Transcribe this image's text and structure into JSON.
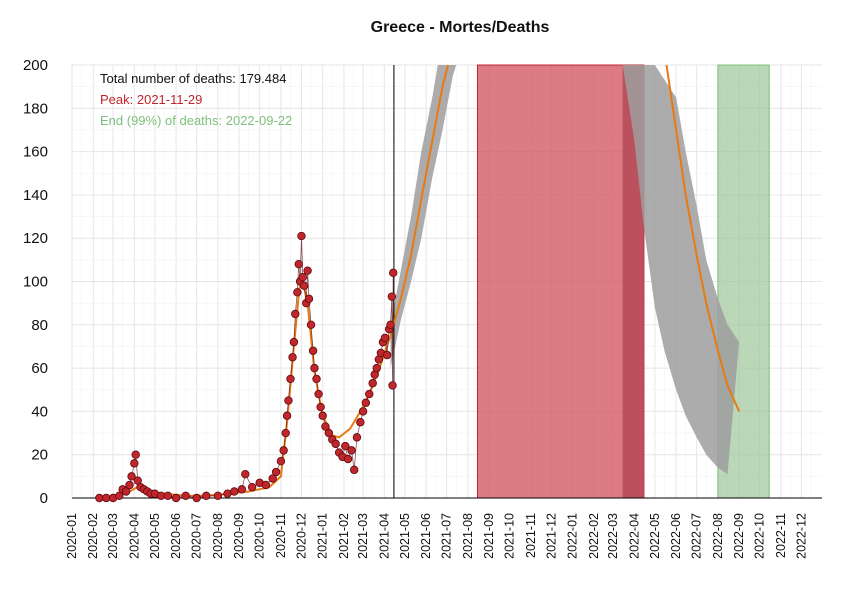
{
  "chart_data": {
    "type": "line",
    "title": "Greece - Mortes/Deaths",
    "annotations": {
      "total": "Total number of deaths: 179.484",
      "peak": "Peak: 2021-11-29",
      "end": "End (99%) of deaths: 2022-09-22"
    },
    "colors": {
      "points_fill": "#c0262c",
      "points_stroke": "#5a0a0e",
      "fit_line": "#e87a12",
      "band": "#9e9e9e",
      "peak_window": "#d45a66",
      "peak_window_overlap": "#b54a56",
      "end_window": "#9cc69a",
      "annotation_total": "#111111",
      "annotation_peak": "#c0262c",
      "annotation_end": "#7fbf7b"
    },
    "x_axis": {
      "labels": [
        "2020-01",
        "2020-02",
        "2020-03",
        "2020-04",
        "2020-05",
        "2020-06",
        "2020-07",
        "2020-08",
        "2020-09",
        "2020-10",
        "2020-11",
        "2020-12",
        "2021-01",
        "2021-02",
        "2021-03",
        "2021-04",
        "2021-05",
        "2021-06",
        "2021-07",
        "2021-08",
        "2021-09",
        "2021-10",
        "2021-11",
        "2021-12",
        "2022-01",
        "2022-02",
        "2022-03",
        "2022-04",
        "2022-05",
        "2022-06",
        "2022-07",
        "2022-08",
        "2022-09",
        "2022-10",
        "2022-11",
        "2022-12"
      ]
    },
    "y_axis": {
      "ylim": [
        0,
        200
      ],
      "ticks": [
        0,
        20,
        40,
        60,
        80,
        100,
        120,
        140,
        160,
        180,
        200
      ]
    },
    "grid": true,
    "current_date": "2021-04-15",
    "peak_window": [
      "2021-08-15",
      "2022-04-15"
    ],
    "peak_window_overlap": [
      "2022-03-15",
      "2022-04-15"
    ],
    "end_window": [
      "2022-08-01",
      "2022-10-15"
    ],
    "observed_points": [
      [
        "2020-02-10",
        0
      ],
      [
        "2020-02-20",
        0
      ],
      [
        "2020-03-01",
        0
      ],
      [
        "2020-03-10",
        1
      ],
      [
        "2020-03-15",
        4
      ],
      [
        "2020-03-20",
        3
      ],
      [
        "2020-03-25",
        6
      ],
      [
        "2020-03-28",
        10
      ],
      [
        "2020-04-01",
        16
      ],
      [
        "2020-04-03",
        20
      ],
      [
        "2020-04-06",
        8
      ],
      [
        "2020-04-10",
        5
      ],
      [
        "2020-04-15",
        4
      ],
      [
        "2020-04-20",
        3
      ],
      [
        "2020-04-25",
        2
      ],
      [
        "2020-05-01",
        2
      ],
      [
        "2020-05-10",
        1
      ],
      [
        "2020-05-20",
        1
      ],
      [
        "2020-06-01",
        0
      ],
      [
        "2020-06-15",
        1
      ],
      [
        "2020-07-01",
        0
      ],
      [
        "2020-07-15",
        1
      ],
      [
        "2020-08-01",
        1
      ],
      [
        "2020-08-15",
        2
      ],
      [
        "2020-08-25",
        3
      ],
      [
        "2020-09-05",
        4
      ],
      [
        "2020-09-10",
        11
      ],
      [
        "2020-09-20",
        5
      ],
      [
        "2020-10-01",
        7
      ],
      [
        "2020-10-10",
        6
      ],
      [
        "2020-10-20",
        9
      ],
      [
        "2020-10-25",
        12
      ],
      [
        "2020-11-01",
        17
      ],
      [
        "2020-11-05",
        22
      ],
      [
        "2020-11-08",
        30
      ],
      [
        "2020-11-10",
        38
      ],
      [
        "2020-11-12",
        45
      ],
      [
        "2020-11-15",
        55
      ],
      [
        "2020-11-18",
        65
      ],
      [
        "2020-11-20",
        72
      ],
      [
        "2020-11-22",
        85
      ],
      [
        "2020-11-25",
        95
      ],
      [
        "2020-11-27",
        108
      ],
      [
        "2020-11-29",
        100
      ],
      [
        "2020-12-01",
        121
      ],
      [
        "2020-12-03",
        102
      ],
      [
        "2020-12-05",
        98
      ],
      [
        "2020-12-08",
        90
      ],
      [
        "2020-12-10",
        105
      ],
      [
        "2020-12-12",
        92
      ],
      [
        "2020-12-15",
        80
      ],
      [
        "2020-12-18",
        68
      ],
      [
        "2020-12-20",
        60
      ],
      [
        "2020-12-23",
        55
      ],
      [
        "2020-12-26",
        48
      ],
      [
        "2020-12-29",
        42
      ],
      [
        "2021-01-01",
        38
      ],
      [
        "2021-01-05",
        33
      ],
      [
        "2021-01-10",
        30
      ],
      [
        "2021-01-15",
        27
      ],
      [
        "2021-01-20",
        25
      ],
      [
        "2021-01-25",
        21
      ],
      [
        "2021-01-30",
        19
      ],
      [
        "2021-02-03",
        24
      ],
      [
        "2021-02-07",
        18
      ],
      [
        "2021-02-12",
        22
      ],
      [
        "2021-02-16",
        13
      ],
      [
        "2021-02-20",
        28
      ],
      [
        "2021-02-25",
        35
      ],
      [
        "2021-03-01",
        40
      ],
      [
        "2021-03-05",
        44
      ],
      [
        "2021-03-10",
        48
      ],
      [
        "2021-03-15",
        53
      ],
      [
        "2021-03-18",
        57
      ],
      [
        "2021-03-21",
        60
      ],
      [
        "2021-03-24",
        64
      ],
      [
        "2021-03-27",
        67
      ],
      [
        "2021-03-30",
        72
      ],
      [
        "2021-04-02",
        74
      ],
      [
        "2021-04-05",
        66
      ],
      [
        "2021-04-08",
        78
      ],
      [
        "2021-04-10",
        80
      ],
      [
        "2021-04-12",
        93
      ],
      [
        "2021-04-13",
        52
      ],
      [
        "2021-04-14",
        104
      ]
    ],
    "fit_curve": [
      [
        "2020-02-10",
        0
      ],
      [
        "2020-03-10",
        1
      ],
      [
        "2020-03-25",
        3
      ],
      [
        "2020-04-05",
        5
      ],
      [
        "2020-04-20",
        3
      ],
      [
        "2020-05-15",
        2
      ],
      [
        "2020-06-15",
        1
      ],
      [
        "2020-07-15",
        1
      ],
      [
        "2020-08-15",
        2
      ],
      [
        "2020-09-15",
        3
      ],
      [
        "2020-10-15",
        5
      ],
      [
        "2020-11-01",
        10
      ],
      [
        "2020-11-10",
        35
      ],
      [
        "2020-11-20",
        70
      ],
      [
        "2020-11-28",
        97
      ],
      [
        "2020-12-03",
        100
      ],
      [
        "2020-12-10",
        90
      ],
      [
        "2020-12-20",
        58
      ],
      [
        "2021-01-01",
        38
      ],
      [
        "2021-01-15",
        29
      ],
      [
        "2021-01-25",
        28
      ],
      [
        "2021-02-10",
        32
      ],
      [
        "2021-02-25",
        40
      ],
      [
        "2021-03-10",
        48
      ],
      [
        "2021-03-25",
        60
      ],
      [
        "2021-04-10",
        75
      ],
      [
        "2021-04-25",
        92
      ],
      [
        "2021-05-10",
        112
      ],
      [
        "2021-05-25",
        138
      ],
      [
        "2021-06-10",
        165
      ],
      [
        "2021-06-25",
        190
      ],
      [
        "2021-07-03",
        200
      ]
    ],
    "fit_curve_tail": [
      [
        "2022-05-18",
        200
      ],
      [
        "2022-06-01",
        170
      ],
      [
        "2022-06-15",
        140
      ],
      [
        "2022-07-01",
        112
      ],
      [
        "2022-07-15",
        90
      ],
      [
        "2022-08-01",
        68
      ],
      [
        "2022-08-15",
        52
      ],
      [
        "2022-09-01",
        40
      ]
    ],
    "band_upper": [
      [
        "2021-04-10",
        80
      ],
      [
        "2021-04-25",
        105
      ],
      [
        "2021-05-10",
        130
      ],
      [
        "2021-05-25",
        160
      ],
      [
        "2021-06-10",
        185
      ],
      [
        "2021-06-18",
        200
      ]
    ],
    "band_lower": [
      [
        "2021-04-10",
        60
      ],
      [
        "2021-04-25",
        82
      ],
      [
        "2021-05-10",
        100
      ],
      [
        "2021-05-25",
        120
      ],
      [
        "2021-06-10",
        148
      ],
      [
        "2021-06-25",
        170
      ],
      [
        "2021-07-10",
        195
      ],
      [
        "2021-07-15",
        200
      ]
    ],
    "band_tail_upper": [
      [
        "2022-05-01",
        200
      ],
      [
        "2022-06-01",
        185
      ],
      [
        "2022-06-15",
        160
      ],
      [
        "2022-07-01",
        135
      ],
      [
        "2022-07-15",
        110
      ],
      [
        "2022-08-01",
        92
      ],
      [
        "2022-08-15",
        80
      ],
      [
        "2022-09-01",
        72
      ]
    ],
    "band_tail_lower": [
      [
        "2022-03-15",
        200
      ],
      [
        "2022-04-01",
        165
      ],
      [
        "2022-04-15",
        125
      ],
      [
        "2022-05-01",
        88
      ],
      [
        "2022-05-15",
        68
      ],
      [
        "2022-06-01",
        50
      ],
      [
        "2022-06-15",
        38
      ],
      [
        "2022-07-01",
        28
      ],
      [
        "2022-07-15",
        20
      ],
      [
        "2022-08-01",
        14
      ],
      [
        "2022-08-15",
        11
      ]
    ]
  }
}
